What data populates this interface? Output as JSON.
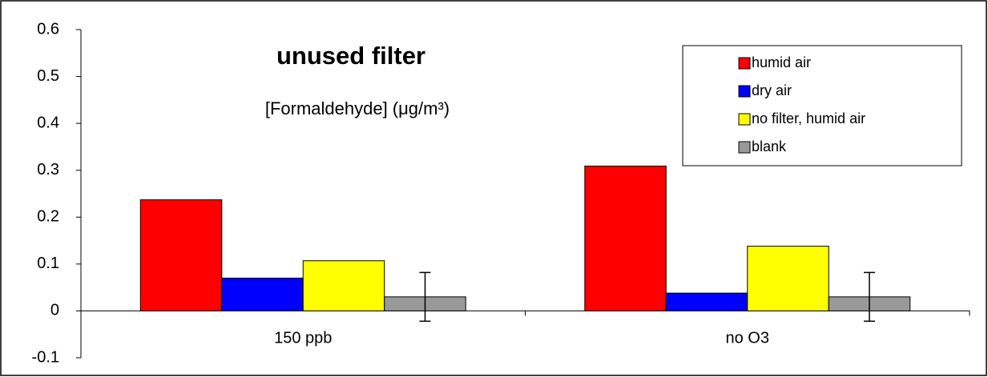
{
  "chart_data": {
    "type": "bar",
    "title": "unused filter",
    "subtitle": "[Formaldehyde] (μg/m³)",
    "categories": [
      "150 ppb",
      "no O3"
    ],
    "series": [
      {
        "name": "humid air",
        "color": "#ff0000",
        "values": [
          0.237,
          0.309
        ]
      },
      {
        "name": "dry air",
        "color": "#0000ff",
        "values": [
          0.07,
          0.038
        ]
      },
      {
        "name": "no filter, humid air",
        "color": "#ffff00",
        "values": [
          0.107,
          0.138
        ]
      },
      {
        "name": "blank",
        "color": "#999999",
        "values": [
          0.03,
          0.03
        ],
        "errors": [
          0.052,
          0.052
        ]
      }
    ],
    "ylim": [
      -0.1,
      0.6
    ],
    "yticks": [
      -0.1,
      0,
      0.1,
      0.2,
      0.3,
      0.4,
      0.5,
      0.6
    ],
    "legend": "upper right",
    "grid": false
  }
}
